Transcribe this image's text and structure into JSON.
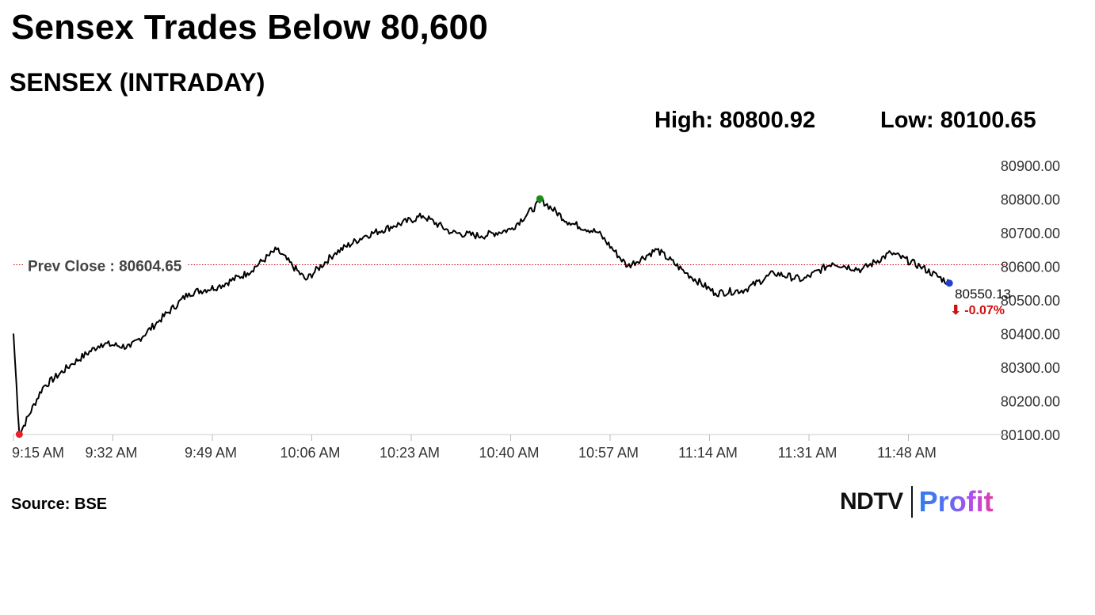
{
  "headline": "Sensex Trades Below 80,600",
  "subtitle": "SENSEX (INTRADAY)",
  "stats": {
    "high": "High: 80800.92",
    "low": "Low: 80100.65"
  },
  "source": "Source: BSE",
  "brand": {
    "ndtv": "NDTV",
    "profit": "Profit"
  },
  "colors": {
    "line": "#000000",
    "prev_close": "#cc0000",
    "high_dot": "#1a8c1a",
    "low_dot": "#e8202a",
    "last_dot": "#1f3fd0",
    "change": "#d01010",
    "axis_text": "#333333"
  },
  "chart_data": {
    "type": "line",
    "series": [
      {
        "x": [
          "9:15 AM",
          "9:20 AM",
          "9:25 AM",
          "9:30 AM",
          "9:35 AM",
          "9:40 AM",
          "9:45 AM",
          "9:50 AM",
          "9:55 AM",
          "10:00 AM",
          "10:05 AM",
          "10:10 AM",
          "10:15 AM",
          "10:20 AM",
          "10:25 AM",
          "10:30 AM",
          "10:35 AM",
          "10:40 AM",
          "10:45 AM",
          "10:50 AM",
          "10:55 AM",
          "11:00 AM",
          "11:05 AM",
          "11:10 AM",
          "11:15 AM",
          "11:20 AM",
          "11:25 AM",
          "11:30 AM",
          "11:35 AM",
          "11:40 AM",
          "11:45 AM",
          "11:50 AM",
          "11:55 AM"
        ],
        "y": [
          80400,
          80240,
          80310,
          80370,
          80360,
          80440,
          80520,
          80540,
          80580,
          80650,
          80560,
          80640,
          80690,
          80720,
          80750,
          80700,
          80690,
          80710,
          80790,
          80730,
          80700,
          80600,
          80650,
          80580,
          80520,
          80530,
          80580,
          80560,
          80610,
          80590,
          80640,
          80600,
          80550
        ]
      }
    ],
    "markers": {
      "high": 80800.92,
      "low": 80100.65,
      "last": 80550.13
    },
    "prev_close": {
      "label": "Prev Close : 80604.65",
      "value": 80604.65
    },
    "last_label": "80550.13",
    "change_label": "⬇ -0.07%",
    "ylim": [
      80100,
      80900
    ],
    "yticks": [
      "80100.00",
      "80200.00",
      "80300.00",
      "80400.00",
      "80500.00",
      "80600.00",
      "80700.00",
      "80800.00",
      "80900.00"
    ],
    "xticks": [
      "9:15 AM",
      "9:32 AM",
      "9:49 AM",
      "10:06 AM",
      "10:23 AM",
      "10:40 AM",
      "10:57 AM",
      "11:14 AM",
      "11:31 AM",
      "11:48 AM"
    ],
    "xlabel": "",
    "ylabel": "",
    "grid": false,
    "legend": "none"
  }
}
